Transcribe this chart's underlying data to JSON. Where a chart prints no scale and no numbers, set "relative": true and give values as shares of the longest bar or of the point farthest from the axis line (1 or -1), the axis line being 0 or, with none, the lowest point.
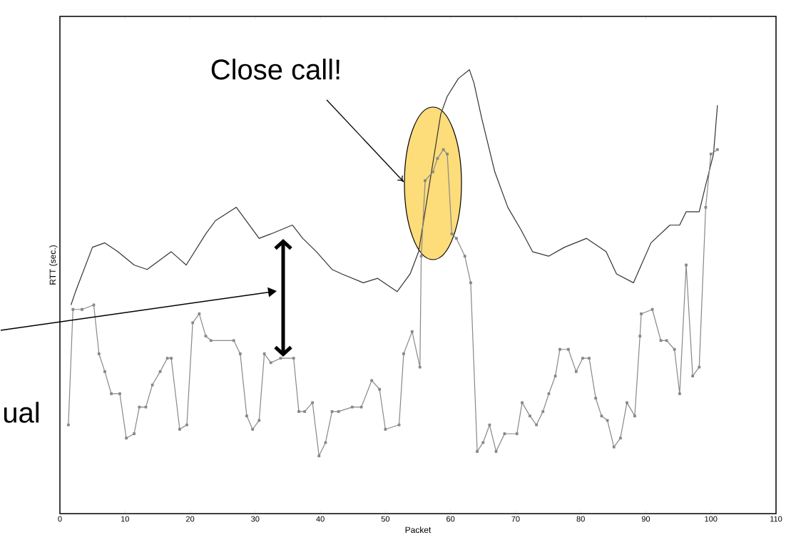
{
  "chart_data": {
    "type": "line",
    "relative": true,
    "xlabel": "Packet",
    "ylabel": "RTT (sec.)",
    "xlim": [
      0,
      110
    ],
    "xticks": [
      0,
      10,
      20,
      30,
      40,
      50,
      60,
      70,
      80,
      90,
      100,
      110
    ],
    "grid": false,
    "line_style": "solid",
    "annotations": [
      "Close call!",
      "ual"
    ],
    "series": [
      {
        "color": "#333333",
        "marker": "none",
        "x": [
          1.7,
          2.4,
          5,
          6.9,
          8.9,
          11.4,
          13.4,
          17.1,
          19.4,
          22.4,
          23.9,
          27.1,
          30.6,
          32.4,
          35.7,
          37.3,
          39.4,
          41.8,
          43.3,
          46.6,
          48.8,
          51.8,
          53.8,
          55.1,
          58.5,
          59.5,
          61.2,
          62.9,
          63.6,
          64.8,
          66.8,
          68.8,
          70.8,
          72.6,
          75.1,
          77.5,
          80.9,
          83.9,
          85.5,
          88.1,
          89.3,
          90.8,
          93.7,
          95.2,
          96.2,
          98.2,
          99.2,
          100.4,
          101
        ],
        "values": [
          0.47,
          0.5,
          0.6,
          0.61,
          0.59,
          0.56,
          0.55,
          0.59,
          0.56,
          0.63,
          0.66,
          0.69,
          0.62,
          0.63,
          0.65,
          0.62,
          0.59,
          0.55,
          0.54,
          0.52,
          0.53,
          0.5,
          0.54,
          0.59,
          0.9,
          0.94,
          0.98,
          1,
          0.97,
          0.89,
          0.77,
          0.69,
          0.64,
          0.59,
          0.58,
          0.6,
          0.62,
          0.59,
          0.54,
          0.52,
          0.56,
          0.61,
          0.65,
          0.65,
          0.68,
          0.68,
          0.74,
          0.81,
          0.92
        ]
      },
      {
        "color": "#888888",
        "marker": "square",
        "x": [
          1.3,
          2,
          3.4,
          5.2,
          6,
          6.9,
          7.9,
          9.2,
          10.2,
          11.4,
          12.2,
          13.2,
          14.2,
          15.4,
          16.5,
          17.1,
          18.4,
          19.5,
          20.4,
          21.4,
          22.4,
          23.2,
          26.7,
          27.7,
          28.7,
          29.6,
          30.6,
          31.4,
          32.4,
          33.9,
          35.9,
          36.7,
          37.6,
          38.8,
          39.8,
          40.8,
          41.8,
          42.8,
          44.9,
          46.3,
          47.9,
          49.1,
          50,
          52.1,
          52.8,
          54.1,
          55.3,
          55.5,
          56.1,
          57.3,
          58,
          58.9,
          59.5,
          60.2,
          60.9,
          62.2,
          63.1,
          64.1,
          65,
          66,
          67,
          68.3,
          70.2,
          71,
          72.2,
          73.2,
          74.2,
          75.1,
          76.1,
          76.8,
          78.1,
          79.3,
          80.3,
          81.3,
          82.3,
          83.2,
          84.1,
          85.1,
          86.1,
          87.1,
          88.3,
          89.1,
          89.3,
          91,
          92.3,
          93.2,
          94.4,
          95.2,
          96.2,
          97.2,
          98.2,
          99.2,
          100,
          101
        ],
        "values": [
          0.2,
          0.46,
          0.46,
          0.47,
          0.36,
          0.32,
          0.27,
          0.27,
          0.17,
          0.18,
          0.24,
          0.24,
          0.29,
          0.32,
          0.35,
          0.35,
          0.19,
          0.2,
          0.43,
          0.45,
          0.4,
          0.39,
          0.39,
          0.36,
          0.22,
          0.19,
          0.21,
          0.36,
          0.34,
          0.35,
          0.35,
          0.23,
          0.23,
          0.25,
          0.13,
          0.16,
          0.23,
          0.23,
          0.24,
          0.24,
          0.3,
          0.28,
          0.19,
          0.2,
          0.36,
          0.41,
          0.33,
          0.58,
          0.75,
          0.77,
          0.8,
          0.82,
          0.81,
          0.63,
          0.62,
          0.58,
          0.52,
          0.14,
          0.16,
          0.2,
          0.14,
          0.18,
          0.18,
          0.25,
          0.22,
          0.2,
          0.23,
          0.27,
          0.31,
          0.37,
          0.37,
          0.32,
          0.35,
          0.35,
          0.26,
          0.22,
          0.21,
          0.15,
          0.17,
          0.25,
          0.22,
          0.4,
          0.45,
          0.46,
          0.39,
          0.39,
          0.37,
          0.27,
          0.56,
          0.31,
          0.33,
          0.69,
          0.81,
          0.82
        ]
      }
    ]
  }
}
